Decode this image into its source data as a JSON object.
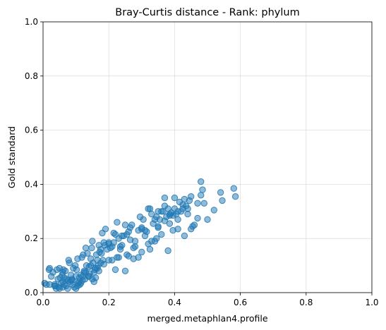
{
  "chart_data": {
    "type": "scatter",
    "title": "Bray-Curtis distance - Rank: phylum",
    "xlabel": "merged.metaphlan4.profile",
    "ylabel": "Gold standard",
    "xlim": [
      0,
      1
    ],
    "ylim": [
      0,
      1
    ],
    "xticks": [
      "0.0",
      "0.2",
      "0.4",
      "0.6",
      "0.8",
      "1.0"
    ],
    "yticks": [
      "0.0",
      "0.2",
      "0.4",
      "0.6",
      "0.8",
      "1.0"
    ],
    "grid": true,
    "color": "#1f77b4",
    "x": [
      0.005,
      0.01,
      0.018,
      0.02,
      0.025,
      0.03,
      0.035,
      0.038,
      0.04,
      0.042,
      0.045,
      0.048,
      0.05,
      0.052,
      0.055,
      0.058,
      0.06,
      0.062,
      0.065,
      0.068,
      0.07,
      0.072,
      0.075,
      0.078,
      0.08,
      0.082,
      0.085,
      0.088,
      0.09,
      0.092,
      0.095,
      0.098,
      0.1,
      0.102,
      0.105,
      0.108,
      0.11,
      0.112,
      0.115,
      0.118,
      0.12,
      0.122,
      0.125,
      0.128,
      0.13,
      0.132,
      0.135,
      0.138,
      0.14,
      0.142,
      0.145,
      0.148,
      0.15,
      0.152,
      0.155,
      0.158,
      0.16,
      0.162,
      0.165,
      0.168,
      0.17,
      0.172,
      0.175,
      0.178,
      0.18,
      0.182,
      0.185,
      0.188,
      0.19,
      0.195,
      0.2,
      0.205,
      0.21,
      0.215,
      0.22,
      0.225,
      0.23,
      0.235,
      0.24,
      0.245,
      0.25,
      0.255,
      0.26,
      0.265,
      0.27,
      0.275,
      0.28,
      0.29,
      0.3,
      0.305,
      0.31,
      0.315,
      0.32,
      0.325,
      0.33,
      0.335,
      0.34,
      0.345,
      0.35,
      0.355,
      0.36,
      0.365,
      0.37,
      0.375,
      0.38,
      0.385,
      0.39,
      0.395,
      0.4,
      0.405,
      0.41,
      0.415,
      0.42,
      0.425,
      0.43,
      0.435,
      0.44,
      0.445,
      0.45,
      0.46,
      0.47,
      0.48,
      0.485,
      0.49,
      0.5,
      0.52,
      0.54,
      0.545,
      0.58,
      0.585,
      0.035,
      0.06,
      0.09,
      0.115,
      0.14,
      0.165,
      0.185,
      0.21,
      0.23,
      0.255,
      0.28,
      0.3,
      0.325,
      0.35,
      0.37,
      0.395,
      0.425,
      0.45,
      0.06,
      0.1,
      0.13,
      0.155,
      0.175,
      0.2,
      0.225,
      0.25,
      0.275,
      0.3,
      0.33,
      0.36,
      0.385,
      0.41,
      0.44,
      0.47,
      0.02,
      0.075,
      0.11,
      0.145,
      0.2,
      0.235,
      0.265,
      0.295,
      0.32,
      0.345,
      0.37,
      0.4,
      0.43,
      0.455,
      0.48,
      0.22,
      0.26,
      0.31,
      0.34,
      0.38,
      0.12,
      0.16,
      0.05,
      0.085,
      0.125,
      0.17,
      0.215,
      0.29,
      0.41,
      0.065,
      0.105,
      0.15,
      0.24,
      0.35,
      0.385
    ],
    "y": [
      0.035,
      0.03,
      0.085,
      0.09,
      0.06,
      0.075,
      0.03,
      0.025,
      0.015,
      0.085,
      0.05,
      0.02,
      0.09,
      0.055,
      0.035,
      0.065,
      0.04,
      0.085,
      0.03,
      0.08,
      0.025,
      0.05,
      0.045,
      0.12,
      0.11,
      0.04,
      0.065,
      0.05,
      0.03,
      0.09,
      0.02,
      0.1,
      0.06,
      0.085,
      0.125,
      0.035,
      0.055,
      0.03,
      0.065,
      0.13,
      0.045,
      0.14,
      0.08,
      0.05,
      0.165,
      0.1,
      0.145,
      0.06,
      0.095,
      0.07,
      0.125,
      0.165,
      0.19,
      0.11,
      0.075,
      0.085,
      0.09,
      0.14,
      0.12,
      0.1,
      0.175,
      0.15,
      0.16,
      0.145,
      0.22,
      0.12,
      0.185,
      0.175,
      0.235,
      0.16,
      0.185,
      0.165,
      0.17,
      0.22,
      0.215,
      0.26,
      0.2,
      0.16,
      0.175,
      0.21,
      0.25,
      0.215,
      0.225,
      0.195,
      0.25,
      0.165,
      0.19,
      0.23,
      0.24,
      0.27,
      0.21,
      0.225,
      0.18,
      0.31,
      0.29,
      0.255,
      0.27,
      0.28,
      0.245,
      0.27,
      0.215,
      0.3,
      0.32,
      0.28,
      0.31,
      0.255,
      0.295,
      0.285,
      0.35,
      0.29,
      0.3,
      0.335,
      0.3,
      0.325,
      0.345,
      0.32,
      0.31,
      0.34,
      0.235,
      0.25,
      0.275,
      0.41,
      0.38,
      0.33,
      0.27,
      0.305,
      0.37,
      0.34,
      0.385,
      0.355,
      0.025,
      0.02,
      0.045,
      0.035,
      0.06,
      0.09,
      0.105,
      0.12,
      0.13,
      0.14,
      0.17,
      0.15,
      0.16,
      0.24,
      0.265,
      0.23,
      0.31,
      0.355,
      0.075,
      0.015,
      0.075,
      0.04,
      0.11,
      0.18,
      0.13,
      0.08,
      0.125,
      0.235,
      0.19,
      0.3,
      0.29,
      0.235,
      0.29,
      0.33,
      0.03,
      0.015,
      0.04,
      0.1,
      0.12,
      0.17,
      0.24,
      0.28,
      0.31,
      0.2,
      0.35,
      0.31,
      0.21,
      0.245,
      0.36,
      0.085,
      0.135,
      0.23,
      0.19,
      0.155,
      0.06,
      0.055,
      0.015,
      0.045,
      0.075,
      0.08,
      0.185,
      0.13,
      0.27,
      0.055,
      0.025,
      0.05,
      0.21,
      0.3,
      0.285
    ]
  }
}
